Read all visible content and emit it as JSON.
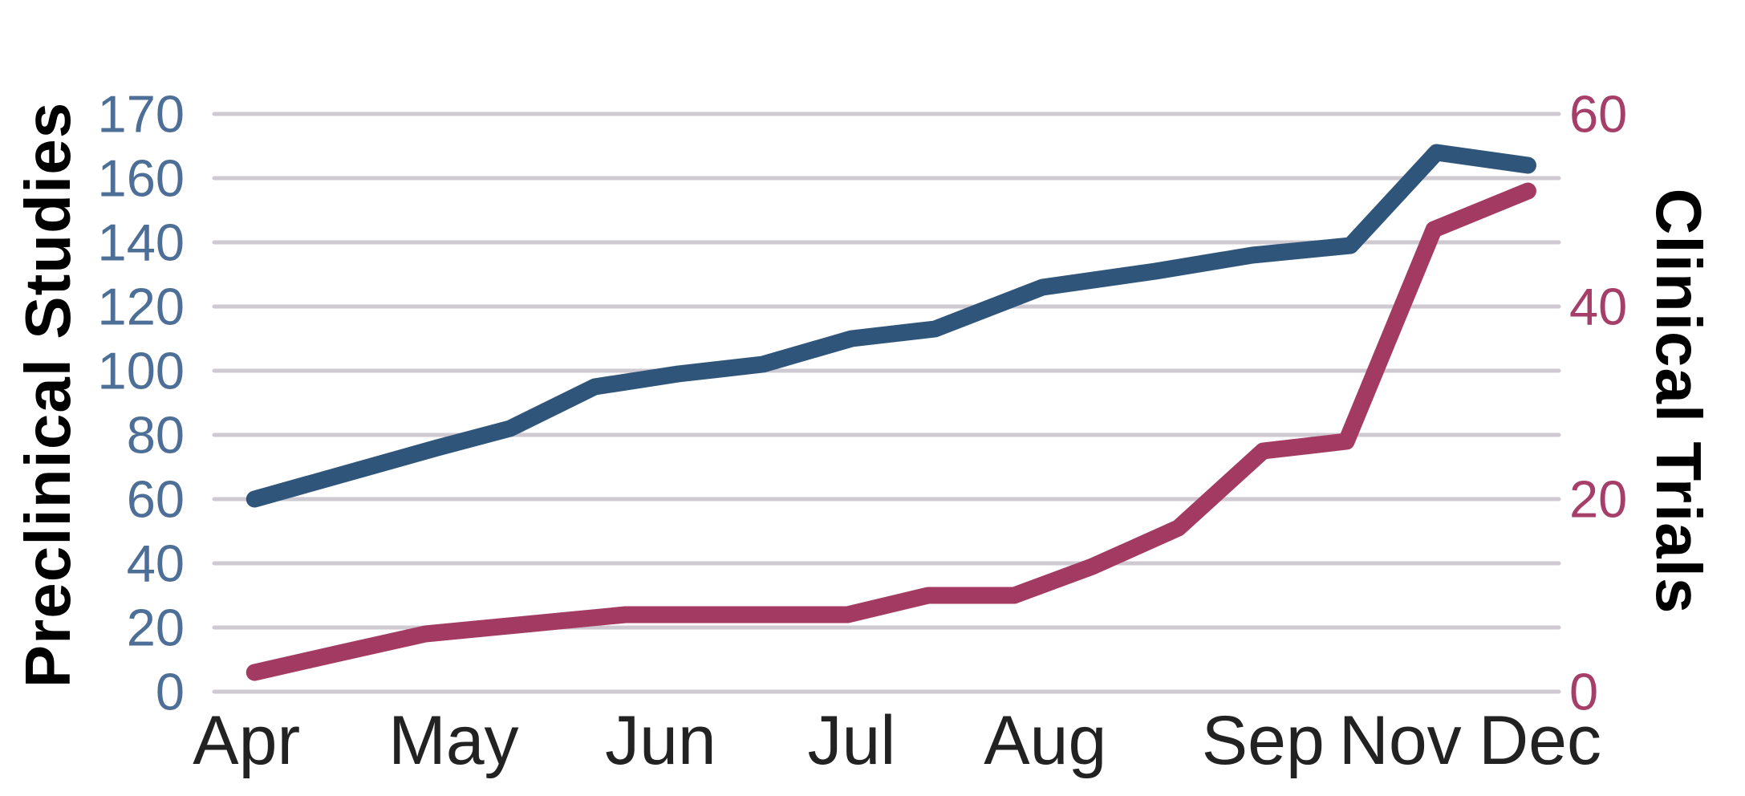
{
  "chart_data": {
    "type": "line",
    "title": "",
    "dual_axis": true,
    "background_color": "#ffffff",
    "grid": {
      "show": true,
      "color": "#cfcad2",
      "gridline_count": 10
    },
    "x_axis": {
      "label_color": "#222222",
      "ticks": [
        {
          "label": "Apr",
          "x": 0.024
        },
        {
          "label": "May",
          "x": 0.178
        },
        {
          "label": "Jun",
          "x": 0.332
        },
        {
          "label": "Jul",
          "x": 0.474
        },
        {
          "label": "Aug",
          "x": 0.618
        },
        {
          "label": "Sep",
          "x": 0.78
        },
        {
          "label": "Nov",
          "x": 0.882
        },
        {
          "label": "Dec",
          "x": 0.986
        }
      ],
      "note": "No Oct label shown; Sep, Nov, Dec are spaced closer together than the earlier months"
    },
    "left_axis": {
      "title": "Preclinical Studies",
      "color": "#4d6e96",
      "tick_labels": [
        "170",
        "160",
        "140",
        "120",
        "100",
        "80",
        "60",
        "40",
        "20",
        "0"
      ],
      "scale_note": "All ten gridlines evenly spaced; top interval 160-170 is visually compressed (10 units) versus 20 units per interval below"
    },
    "right_axis": {
      "title": "Clinical Trials",
      "color": "#a53e68",
      "tick_labels": [
        "60",
        "40",
        "20",
        "0"
      ],
      "tick_values": [
        60,
        40,
        20,
        0
      ],
      "max": 60
    },
    "series": [
      {
        "name": "Preclinical Studies",
        "axis": "left",
        "color": "#2f567a",
        "points": [
          [
            0.03,
            60
          ],
          [
            0.166,
            76
          ],
          [
            0.22,
            82
          ],
          [
            0.283,
            95
          ],
          [
            0.345,
            99
          ],
          [
            0.408,
            102
          ],
          [
            0.474,
            110
          ],
          [
            0.536,
            113
          ],
          [
            0.616,
            126
          ],
          [
            0.7,
            131
          ],
          [
            0.772,
            136
          ],
          [
            0.845,
            139
          ],
          [
            0.909,
            164
          ],
          [
            0.977,
            162
          ]
        ]
      },
      {
        "name": "Clinical Trials",
        "axis": "right",
        "color": "#a23a62",
        "points": [
          [
            0.03,
            2
          ],
          [
            0.093,
            4
          ],
          [
            0.157,
            6
          ],
          [
            0.306,
            8
          ],
          [
            0.471,
            8
          ],
          [
            0.531,
            10
          ],
          [
            0.595,
            10
          ],
          [
            0.653,
            13
          ],
          [
            0.717,
            17
          ],
          [
            0.78,
            25
          ],
          [
            0.842,
            26
          ],
          [
            0.907,
            48
          ],
          [
            0.977,
            52
          ]
        ]
      }
    ]
  }
}
